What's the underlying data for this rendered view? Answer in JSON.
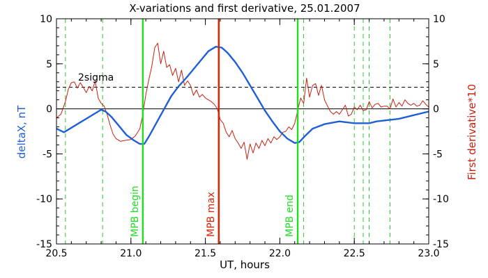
{
  "chart_data": {
    "type": "line",
    "title": "X-variations and first derivative, 25.01.2007",
    "xlabel": "UT, hours",
    "ylabel_left": "deltaX, nT",
    "ylabel_right": "First derivative*10",
    "xlim": [
      20.5,
      23.0
    ],
    "ylim": [
      -15,
      10
    ],
    "x_ticks": [
      "20.5",
      "21.0",
      "21.5",
      "22.0",
      "22.5",
      "23.0"
    ],
    "y_ticks": [
      "10",
      "5",
      "0",
      "-5",
      "-10",
      "-15"
    ],
    "grid": false,
    "colors": {
      "deltaX": "#1f5fd6",
      "derivative": "#c8200e",
      "mpb_boundary": "#22dd22",
      "mpb_max": "#dd2200",
      "dashed_marks": "#22cc22",
      "axes": "#000000"
    },
    "sigma_label": "2sigma",
    "sigma_level": 2.4,
    "zero_level": 0,
    "markers": [
      {
        "label": "MPB begin",
        "x": 21.08
      },
      {
        "label": "MPB max",
        "x": 21.59
      },
      {
        "label": "MPB end",
        "x": 22.12
      }
    ],
    "dashed_markers": [
      20.56,
      20.81,
      22.16,
      22.5,
      22.56,
      22.6,
      22.74
    ],
    "series": [
      {
        "key": "deltaX",
        "x": [
          20.5,
          20.55,
          20.6,
          20.65,
          20.7,
          20.75,
          20.8,
          20.83,
          20.87,
          20.92,
          20.97,
          21.02,
          21.06,
          21.09,
          21.12,
          21.17,
          21.22,
          21.27,
          21.32,
          21.37,
          21.42,
          21.47,
          21.52,
          21.57,
          21.61,
          21.65,
          21.7,
          21.75,
          21.8,
          21.85,
          21.9,
          21.95,
          22.0,
          22.05,
          22.1,
          22.13,
          22.17,
          22.22,
          22.3,
          22.4,
          22.5,
          22.6,
          22.65,
          22.7,
          22.8,
          22.9,
          23.0
        ],
        "y": [
          -2.2,
          -2.6,
          -2.1,
          -1.6,
          -1.1,
          -0.6,
          -0.1,
          -0.3,
          -0.9,
          -1.9,
          -2.9,
          -3.5,
          -3.9,
          -3.9,
          -3.1,
          -1.6,
          -0.1,
          1.4,
          2.5,
          3.4,
          4.4,
          5.4,
          6.4,
          6.9,
          6.8,
          6.2,
          5.2,
          4.0,
          2.6,
          1.2,
          -0.2,
          -1.4,
          -2.5,
          -3.3,
          -3.8,
          -3.7,
          -3.0,
          -2.2,
          -1.7,
          -1.4,
          -1.6,
          -1.6,
          -1.4,
          -1.3,
          -1.1,
          -0.7,
          -0.3
        ]
      },
      {
        "key": "derivative",
        "x": [
          20.5,
          20.53,
          20.56,
          20.58,
          20.6,
          20.62,
          20.64,
          20.66,
          20.68,
          20.7,
          20.72,
          20.74,
          20.76,
          20.78,
          20.8,
          20.82,
          20.84,
          20.86,
          20.88,
          20.9,
          20.93,
          20.96,
          21.0,
          21.03,
          21.06,
          21.08,
          21.1,
          21.12,
          21.14,
          21.16,
          21.18,
          21.2,
          21.22,
          21.24,
          21.26,
          21.28,
          21.3,
          21.32,
          21.34,
          21.36,
          21.38,
          21.4,
          21.42,
          21.44,
          21.46,
          21.48,
          21.5,
          21.52,
          21.54,
          21.56,
          21.58,
          21.6,
          21.62,
          21.64,
          21.66,
          21.68,
          21.7,
          21.72,
          21.74,
          21.76,
          21.78,
          21.8,
          21.82,
          21.84,
          21.86,
          21.88,
          21.9,
          21.92,
          21.94,
          21.96,
          21.98,
          22.0,
          22.02,
          22.04,
          22.06,
          22.08,
          22.1,
          22.12,
          22.14,
          22.16,
          22.18,
          22.2,
          22.22,
          22.24,
          22.26,
          22.28,
          22.3,
          22.32,
          22.34,
          22.36,
          22.38,
          22.4,
          22.42,
          22.44,
          22.46,
          22.48,
          22.5,
          22.52,
          22.54,
          22.56,
          22.58,
          22.6,
          22.62,
          22.64,
          22.66,
          22.68,
          22.7,
          22.72,
          22.74,
          22.76,
          22.78,
          22.8,
          22.82,
          22.84,
          22.86,
          22.88,
          22.9,
          22.92,
          22.94,
          22.96,
          22.98,
          23.0
        ],
        "y": [
          -1.0,
          -0.6,
          0.8,
          2.2,
          2.9,
          3.0,
          2.3,
          2.9,
          2.4,
          1.8,
          2.5,
          2.0,
          3.1,
          1.2,
          0.6,
          0.3,
          -0.6,
          -1.8,
          -2.8,
          -3.3,
          -3.6,
          -3.5,
          -3.4,
          -3.0,
          -2.2,
          -0.6,
          1.6,
          3.2,
          4.7,
          6.8,
          7.3,
          5.0,
          6.4,
          4.6,
          4.9,
          3.7,
          4.5,
          3.0,
          4.3,
          2.6,
          3.1,
          2.6,
          1.5,
          2.1,
          1.3,
          1.6,
          1.2,
          1.0,
          0.8,
          0.5,
          0.0,
          -1.2,
          -1.6,
          -2.6,
          -3.1,
          -2.4,
          -3.3,
          -3.8,
          -4.4,
          -3.7,
          -5.6,
          -3.9,
          -4.9,
          -3.8,
          -4.4,
          -3.5,
          -4.1,
          -3.3,
          -3.8,
          -3.1,
          -3.4,
          -3.1,
          -2.6,
          -2.5,
          -2.0,
          -2.3,
          -1.6,
          -0.2,
          1.2,
          0.6,
          3.4,
          1.3,
          2.6,
          2.8,
          1.5,
          2.6,
          1.0,
          0.3,
          -0.3,
          -0.6,
          -0.3,
          -0.6,
          -0.1,
          0.4,
          -0.8,
          -0.6,
          0.2,
          -0.1,
          0.4,
          -0.2,
          -0.1,
          0.8,
          0.1,
          0.5,
          0.6,
          0.2,
          0.3,
          0.3,
          0.0,
          1.1,
          0.2,
          0.7,
          0.3,
          1.0,
          0.6,
          0.4,
          0.6,
          0.3,
          0.4,
          0.9,
          0.5,
          0.2
        ]
      }
    ]
  }
}
